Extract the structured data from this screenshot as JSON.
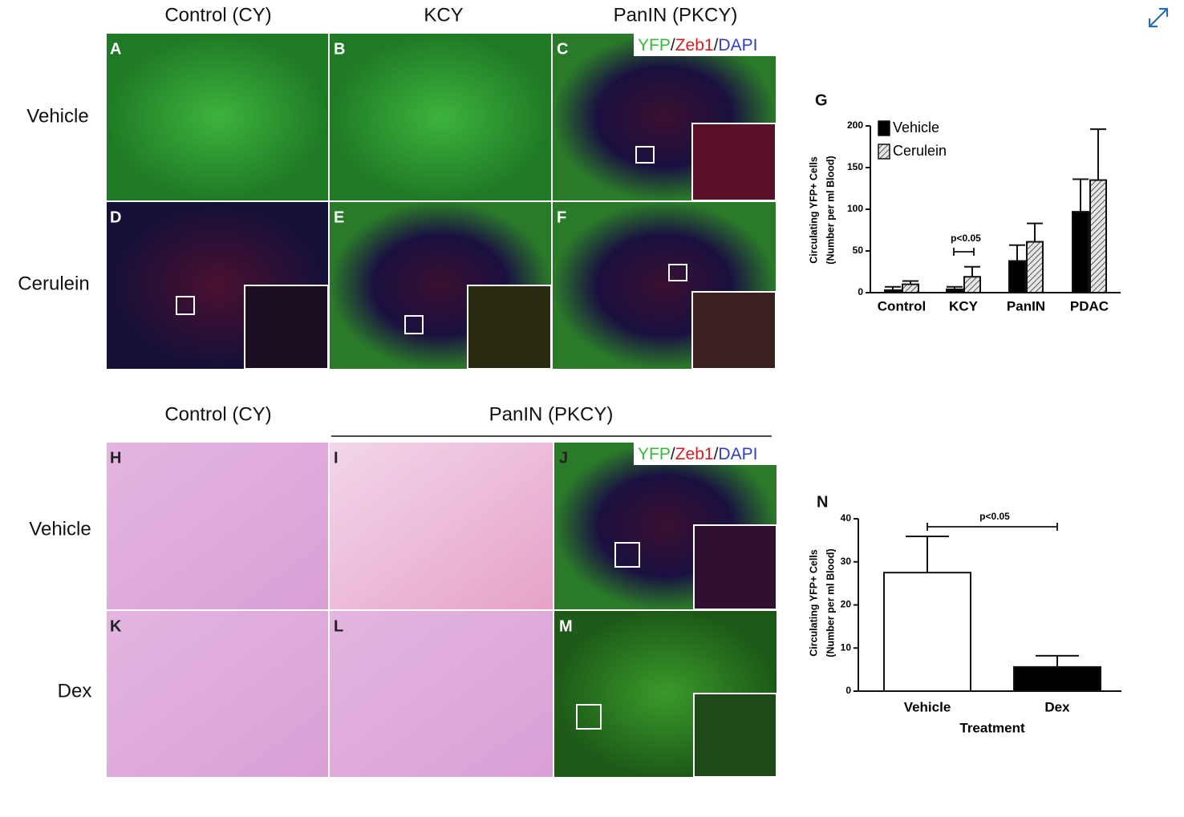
{
  "figure": {
    "top": {
      "columns": [
        "Control (CY)",
        "KCY",
        "PanIN (PKCY)"
      ],
      "rows": [
        "Vehicle",
        "Cerulein"
      ],
      "panels": [
        "A",
        "B",
        "C",
        "D",
        "E",
        "F"
      ]
    },
    "bottom": {
      "columns": [
        "Control (CY)",
        "PanIN (PKCY)"
      ],
      "rows": [
        "Vehicle",
        "Dex"
      ],
      "panels": [
        "H",
        "I",
        "J",
        "K",
        "L",
        "M"
      ]
    },
    "stain_legend": [
      "YFP",
      "/",
      "Zeb1",
      "/",
      "DAPI"
    ]
  },
  "chart_data": [
    {
      "type": "bar",
      "panel": "G",
      "y_label": [
        "Circulating YFP+ Cells",
        "(Number per ml Blood)"
      ],
      "categories": [
        "Control",
        "KCY",
        "PanIN",
        "PDAC"
      ],
      "series": [
        {
          "name": "Vehicle",
          "color": "#000000",
          "values": [
            3,
            4,
            38,
            97
          ],
          "errors": [
            4,
            3,
            19,
            39
          ]
        },
        {
          "name": "Cerulein",
          "color": "#d9d9d9",
          "pattern": "hatch",
          "values": [
            10,
            19,
            61,
            135
          ],
          "errors": [
            4,
            12,
            22,
            61
          ]
        }
      ],
      "ylim": [
        0,
        200
      ],
      "yticks": [
        0,
        50,
        100,
        150,
        200
      ],
      "annotation": "p<0.05"
    },
    {
      "type": "bar",
      "panel": "N",
      "y_label": [
        "Circulating YFP+ Cells",
        "(Number per ml Blood)"
      ],
      "x_label": "Treatment",
      "categories": [
        "Vehicle",
        "Dex"
      ],
      "colors": [
        "#ffffff",
        "#000000"
      ],
      "values": [
        27.5,
        5.6
      ],
      "errors": [
        8.4,
        2.6
      ],
      "ylim": [
        0,
        40
      ],
      "yticks": [
        0,
        10,
        20,
        30,
        40
      ],
      "annotation": "p<0.05"
    }
  ]
}
